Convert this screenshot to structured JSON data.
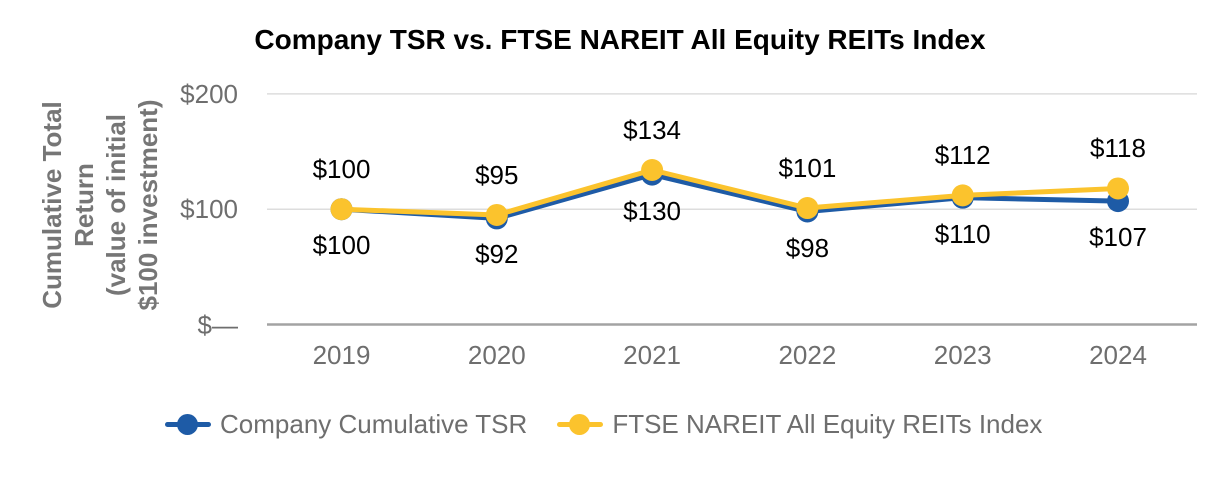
{
  "chart_data": {
    "type": "line",
    "title": "Company TSR vs. FTSE NAREIT All Equity REITs Index",
    "categories": [
      "2019",
      "2020",
      "2021",
      "2022",
      "2023",
      "2024"
    ],
    "series": [
      {
        "name": "Company Cumulative TSR",
        "color": "#1E5BA6",
        "values": [
          100,
          92,
          130,
          98,
          110,
          107
        ],
        "data_labels": [
          "$100",
          "$92",
          "$130",
          "$98",
          "$110",
          "$107"
        ],
        "label_position": "below"
      },
      {
        "name": "FTSE NAREIT All Equity REITs Index",
        "color": "#FBC32D",
        "values": [
          100,
          95,
          134,
          101,
          112,
          118
        ],
        "data_labels": [
          "$100",
          "$95",
          "$134",
          "$101",
          "$112",
          "$118"
        ],
        "label_position": "above"
      }
    ],
    "ylabel_lines": [
      "Cumulative Total",
      "Return",
      "(value of initial",
      "$100 investment)"
    ],
    "yticks": [
      {
        "label": "$200",
        "value": 200
      },
      {
        "label": "$100",
        "value": 100
      },
      {
        "label": "$—",
        "value": 0
      }
    ],
    "ylim": [
      0,
      200
    ],
    "grid": "horizontal",
    "legend_position": "bottom"
  },
  "colors": {
    "background": "#FFFFFF",
    "gridline": "#DDDDDD",
    "axis_line": "#A3A3A3",
    "tick_text": "#6E6E6E",
    "axis_title_text": "#767676",
    "data_label_text": "#000000",
    "title_text": "#000000",
    "company_blue": "#1E5BA6",
    "index_yellow": "#FBC32D"
  }
}
